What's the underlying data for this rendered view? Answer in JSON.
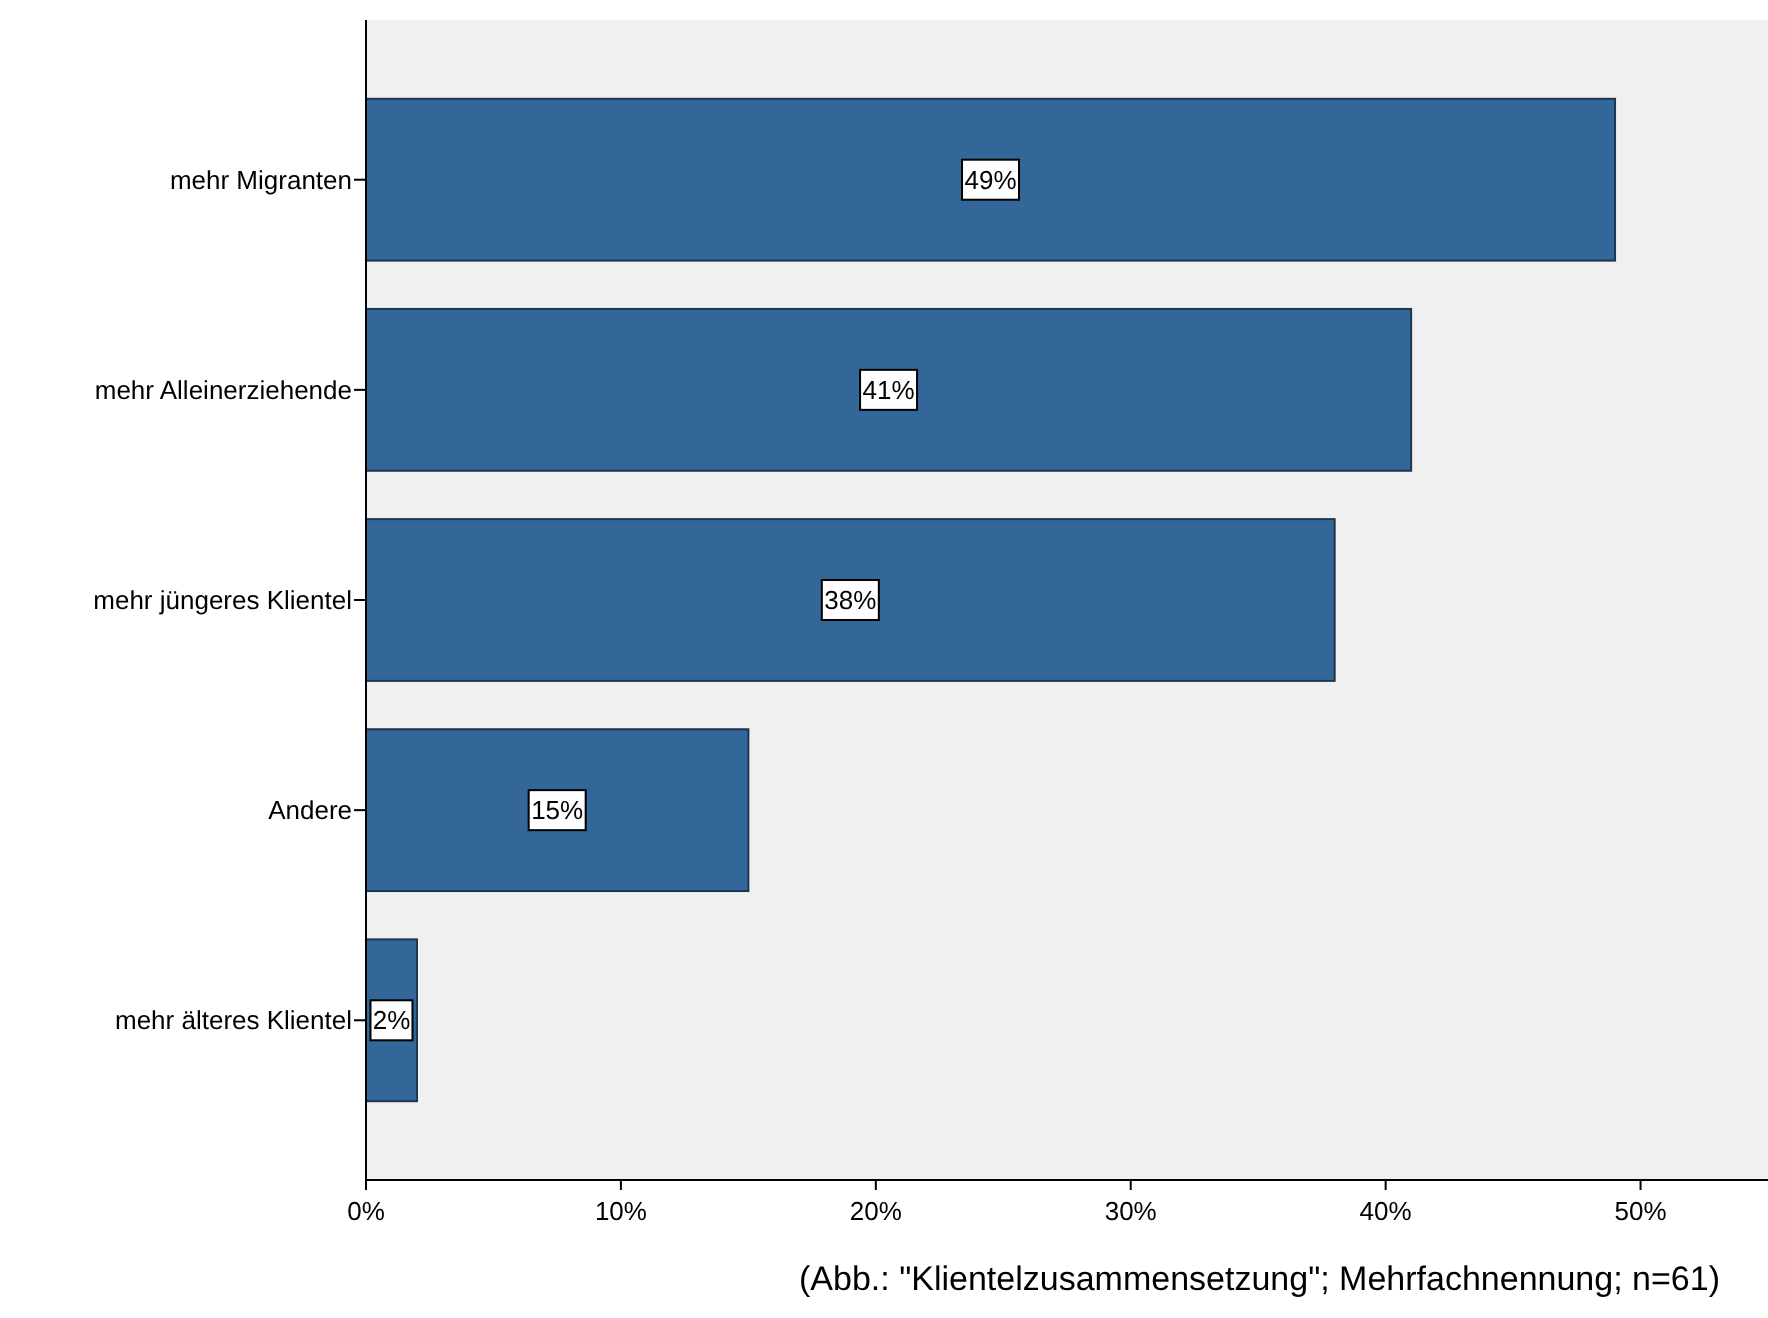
{
  "chart_data": {
    "type": "bar",
    "orientation": "horizontal",
    "categories": [
      "mehr Migranten",
      "mehr Alleinerziehende",
      "mehr jüngeres Klientel",
      "Andere",
      "mehr älteres Klientel"
    ],
    "values": [
      49,
      41,
      38,
      15,
      2
    ],
    "value_labels": [
      "49%",
      "41%",
      "38%",
      "15%",
      "2%"
    ],
    "color": "#336699",
    "xlim": [
      0,
      55
    ],
    "xticks": [
      {
        "value": 0,
        "label": "0%"
      },
      {
        "value": 10,
        "label": "10%"
      },
      {
        "value": 20,
        "label": "20%"
      },
      {
        "value": 30,
        "label": "30%"
      },
      {
        "value": 40,
        "label": "40%"
      },
      {
        "value": 50,
        "label": "50%"
      }
    ],
    "grid": false,
    "annotations": [
      "(Abb.: \"Klientelzusammensetzung\"; Mehrfachnennung; n=61)"
    ]
  }
}
